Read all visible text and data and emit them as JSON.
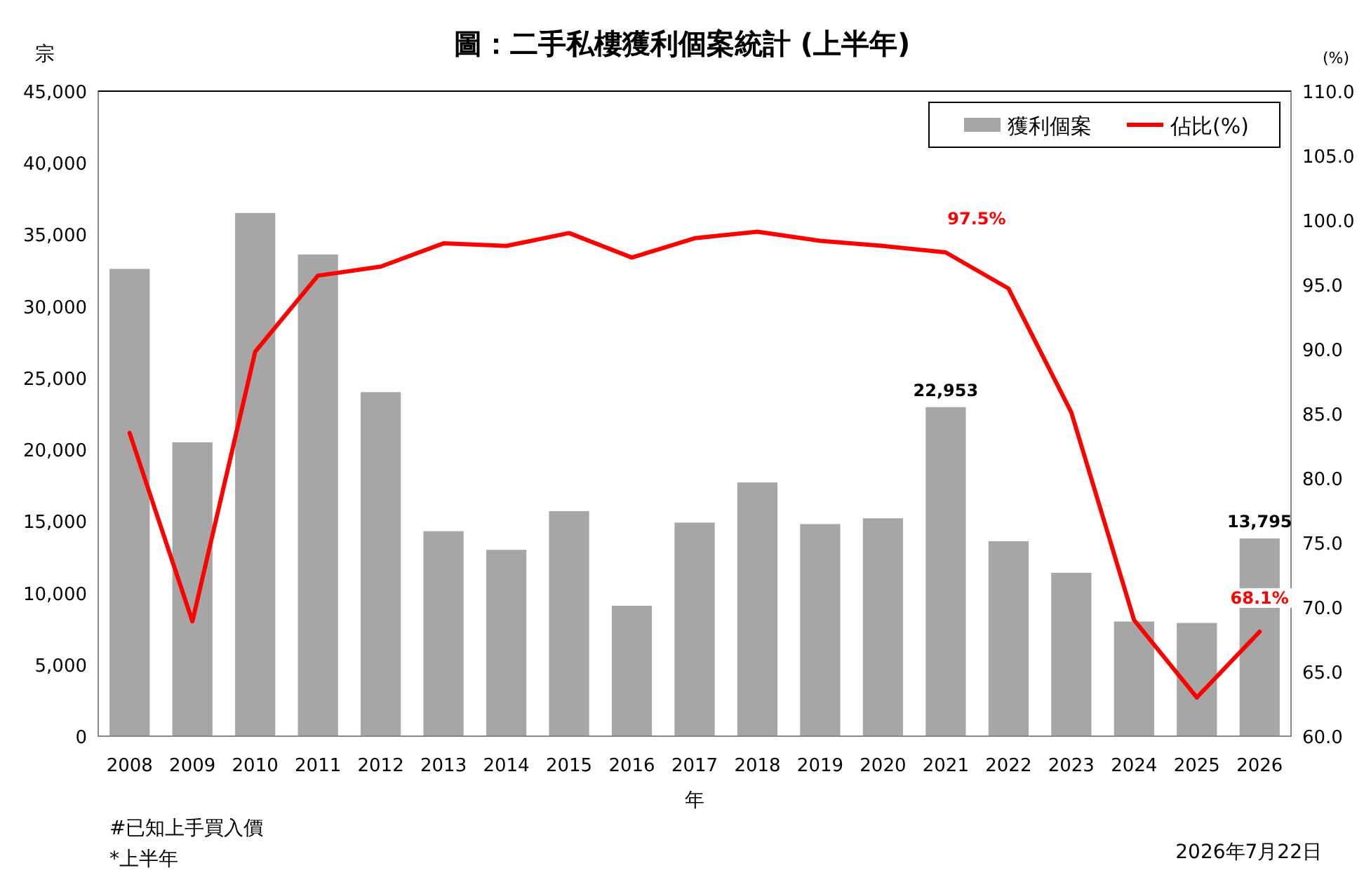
{
  "chart_data": {
    "type": "bar",
    "title": "圖：二手私樓獲利個案統計 (上半年)",
    "xlabel": "年",
    "ylabel": "宗",
    "y2label": "(%)",
    "categories": [
      "2008",
      "2009",
      "2010",
      "2011",
      "2012",
      "2013",
      "2014",
      "2015",
      "2016",
      "2017",
      "2018",
      "2019",
      "2020",
      "2021",
      "2022",
      "2023",
      "2024",
      "2025",
      "2026"
    ],
    "series": [
      {
        "name": "獲利個案",
        "color": "#a6a6a6",
        "values": [
          32600,
          20500,
          36500,
          33600,
          24000,
          14300,
          13000,
          15700,
          9100,
          14900,
          17700,
          14800,
          15200,
          22953,
          13600,
          11400,
          8000,
          7900,
          13795
        ],
        "value_labels": [
          null,
          null,
          null,
          null,
          null,
          null,
          null,
          null,
          null,
          null,
          null,
          null,
          null,
          "22,953",
          null,
          null,
          null,
          null,
          "13,795"
        ]
      },
      {
        "name": "佔比(%)",
        "type": "line",
        "axis": "y2",
        "color": "#ff0000",
        "values": [
          83.5,
          68.9,
          89.8,
          95.7,
          96.4,
          98.2,
          98.0,
          99.0,
          97.1,
          98.6,
          99.1,
          98.4,
          98.0,
          97.5,
          94.7,
          85.1,
          69.0,
          63.0,
          68.1
        ],
        "value_labels": [
          null,
          null,
          null,
          null,
          null,
          null,
          null,
          null,
          null,
          null,
          null,
          null,
          null,
          "97.5%",
          null,
          null,
          null,
          null,
          "68.1%"
        ]
      }
    ],
    "ylim": [
      0,
      45000
    ],
    "yticks": [
      {
        "value": 0,
        "label": "0"
      },
      {
        "value": 5000,
        "label": "5,000"
      },
      {
        "value": 10000,
        "label": "10,000"
      },
      {
        "value": 15000,
        "label": "15,000"
      },
      {
        "value": 20000,
        "label": "20,000"
      },
      {
        "value": 25000,
        "label": "25,000"
      },
      {
        "value": 30000,
        "label": "30,000"
      },
      {
        "value": 35000,
        "label": "35,000"
      },
      {
        "value": 40000,
        "label": "40,000"
      },
      {
        "value": 45000,
        "label": "45,000"
      }
    ],
    "y2lim": [
      60,
      110
    ],
    "y2ticks": [
      {
        "value": 60,
        "label": "60.0"
      },
      {
        "value": 65,
        "label": "65.0"
      },
      {
        "value": 70,
        "label": "70.0"
      },
      {
        "value": 75,
        "label": "75.0"
      },
      {
        "value": 80,
        "label": "80.0"
      },
      {
        "value": 85,
        "label": "85.0"
      },
      {
        "value": 90,
        "label": "90.0"
      },
      {
        "value": 95,
        "label": "95.0"
      },
      {
        "value": 100,
        "label": "100.0"
      },
      {
        "value": 105,
        "label": "105.0"
      },
      {
        "value": 110,
        "label": "110.0"
      }
    ],
    "legend": "top right",
    "grid": false,
    "annotations": [
      "#已知上手買入價",
      "*上半年",
      "2026年7月22日"
    ]
  }
}
